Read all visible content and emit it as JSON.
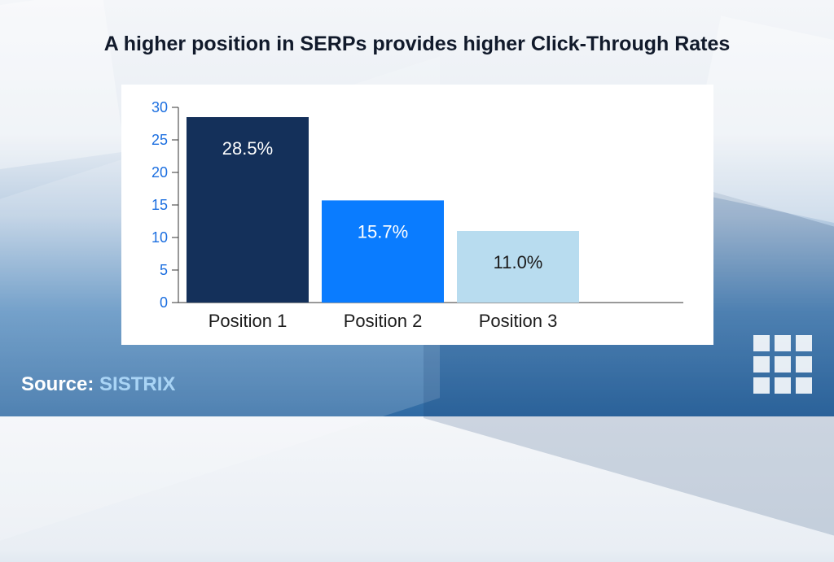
{
  "title": "A higher position in SERPs provides higher Click-Through Rates",
  "source": {
    "label": "Source:",
    "brand": "SISTRIX"
  },
  "logo": {
    "icon": "grid-icon"
  },
  "colors": {
    "bar1": "#14305a",
    "bar2": "#0a7cff",
    "bar3": "#b8dcef",
    "axis_text": "#1c6fe0",
    "category_text": "#1b1b1b"
  },
  "chart_data": {
    "type": "bar",
    "categories": [
      "Position 1",
      "Position 2",
      "Position 3"
    ],
    "values": [
      28.5,
      15.7,
      11.0
    ],
    "data_labels": [
      "28.5%",
      "15.7%",
      "11.0%"
    ],
    "yticks": [
      0,
      5,
      10,
      15,
      20,
      25,
      30
    ],
    "ylim": [
      0,
      30
    ],
    "grid": false,
    "legend": "none"
  }
}
